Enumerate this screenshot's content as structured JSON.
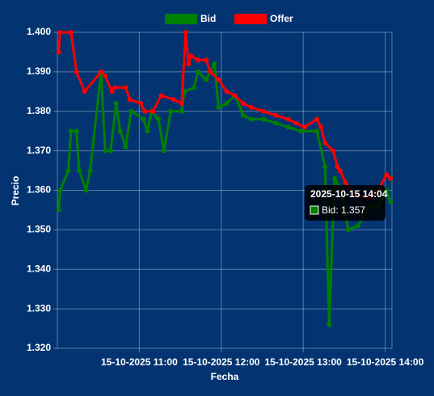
{
  "chart_data": {
    "type": "line",
    "xlabel": "Fecha",
    "ylabel": "Precio",
    "legend": "top",
    "grid": true,
    "xlim": [
      "15-10-2025 10:00",
      "15-10-2025 14:05"
    ],
    "xticks": [
      "15-10-2025 11:00",
      "15-10-2025 12:00",
      "15-10-2025 13:00",
      "15-10-2025 14:00"
    ],
    "ylim": [
      1.32,
      1.4
    ],
    "yticks": [
      {
        "value": 1.32,
        "label": "1.320"
      },
      {
        "value": 1.33,
        "label": "1.330"
      },
      {
        "value": 1.34,
        "label": "1.340"
      },
      {
        "value": 1.35,
        "label": "1.350"
      },
      {
        "value": 1.36,
        "label": "1.360"
      },
      {
        "value": 1.37,
        "label": "1.370"
      },
      {
        "value": 1.38,
        "label": "1.380"
      },
      {
        "value": 1.39,
        "label": "1.390"
      },
      {
        "value": 1.4,
        "label": "1.400"
      }
    ],
    "series": [
      {
        "name": "Bid",
        "color": "#008000",
        "x": [
          "15-10-2025 10:01",
          "15-10-2025 10:02",
          "15-10-2025 10:08",
          "15-10-2025 10:10",
          "15-10-2025 10:14",
          "15-10-2025 10:16",
          "15-10-2025 10:21",
          "15-10-2025 10:24",
          "15-10-2025 10:32",
          "15-10-2025 10:35",
          "15-10-2025 10:39",
          "15-10-2025 10:43",
          "15-10-2025 10:46",
          "15-10-2025 10:50",
          "15-10-2025 10:54",
          "15-10-2025 11:03",
          "15-10-2025 11:06",
          "15-10-2025 11:09",
          "15-10-2025 11:14",
          "15-10-2025 11:18",
          "15-10-2025 11:23",
          "15-10-2025 11:31",
          "15-10-2025 11:33",
          "15-10-2025 11:40",
          "15-10-2025 11:43",
          "15-10-2025 11:49",
          "15-10-2025 11:55",
          "15-10-2025 11:58",
          "15-10-2025 12:04",
          "15-10-2025 12:10",
          "15-10-2025 12:16",
          "15-10-2025 12:22",
          "15-10-2025 12:31",
          "15-10-2025 12:40",
          "15-10-2025 12:49",
          "15-10-2025 12:58",
          "15-10-2025 13:10",
          "15-10-2025 13:16",
          "15-10-2025 13:19",
          "15-10-2025 13:23",
          "15-10-2025 13:28",
          "15-10-2025 13:33",
          "15-10-2025 13:40",
          "15-10-2025 13:49",
          "15-10-2025 13:55",
          "15-10-2025 14:01",
          "15-10-2025 14:04"
        ],
        "values": [
          1.355,
          1.36,
          1.365,
          1.375,
          1.375,
          1.365,
          1.36,
          1.365,
          1.39,
          1.37,
          1.37,
          1.382,
          1.375,
          1.371,
          1.38,
          1.378,
          1.375,
          1.38,
          1.378,
          1.37,
          1.38,
          1.38,
          1.385,
          1.386,
          1.39,
          1.388,
          1.392,
          1.381,
          1.382,
          1.384,
          1.379,
          1.378,
          1.378,
          1.377,
          1.376,
          1.375,
          1.375,
          1.366,
          1.326,
          1.363,
          1.36,
          1.35,
          1.351,
          1.356,
          1.356,
          1.36,
          1.357
        ]
      },
      {
        "name": "Offer",
        "color": "#ff0000",
        "x": [
          "15-10-2025 10:01",
          "15-10-2025 10:02",
          "15-10-2025 10:10",
          "15-10-2025 10:14",
          "15-10-2025 10:20",
          "15-10-2025 10:32",
          "15-10-2025 10:35",
          "15-10-2025 10:40",
          "15-10-2025 10:42",
          "15-10-2025 10:50",
          "15-10-2025 10:53",
          "15-10-2025 11:01",
          "15-10-2025 11:04",
          "15-10-2025 11:10",
          "15-10-2025 11:16",
          "15-10-2025 11:25",
          "15-10-2025 11:31",
          "15-10-2025 11:34",
          "15-10-2025 11:36",
          "15-10-2025 11:38",
          "15-10-2025 11:43",
          "15-10-2025 11:49",
          "15-10-2025 11:52",
          "15-10-2025 11:58",
          "15-10-2025 12:04",
          "15-10-2025 12:10",
          "15-10-2025 12:16",
          "15-10-2025 12:22",
          "15-10-2025 12:31",
          "15-10-2025 12:40",
          "15-10-2025 12:49",
          "15-10-2025 12:55",
          "15-10-2025 13:01",
          "15-10-2025 13:10",
          "15-10-2025 13:13",
          "15-10-2025 13:16",
          "15-10-2025 13:22",
          "15-10-2025 13:25",
          "15-10-2025 13:27",
          "15-10-2025 13:31",
          "15-10-2025 13:37",
          "15-10-2025 13:49",
          "15-10-2025 13:55",
          "15-10-2025 14:01",
          "15-10-2025 14:04"
        ],
        "values": [
          1.395,
          1.4,
          1.4,
          1.39,
          1.385,
          1.39,
          1.389,
          1.385,
          1.386,
          1.386,
          1.383,
          1.382,
          1.38,
          1.38,
          1.384,
          1.383,
          1.382,
          1.4,
          1.392,
          1.394,
          1.393,
          1.393,
          1.39,
          1.388,
          1.385,
          1.384,
          1.382,
          1.381,
          1.38,
          1.379,
          1.378,
          1.377,
          1.376,
          1.378,
          1.376,
          1.372,
          1.37,
          1.366,
          1.365,
          1.362,
          1.359,
          1.358,
          1.36,
          1.364,
          1.363
        ]
      }
    ],
    "tooltip": {
      "title": "2025-10-15 14:04",
      "label": "Bid: 1.357"
    }
  }
}
